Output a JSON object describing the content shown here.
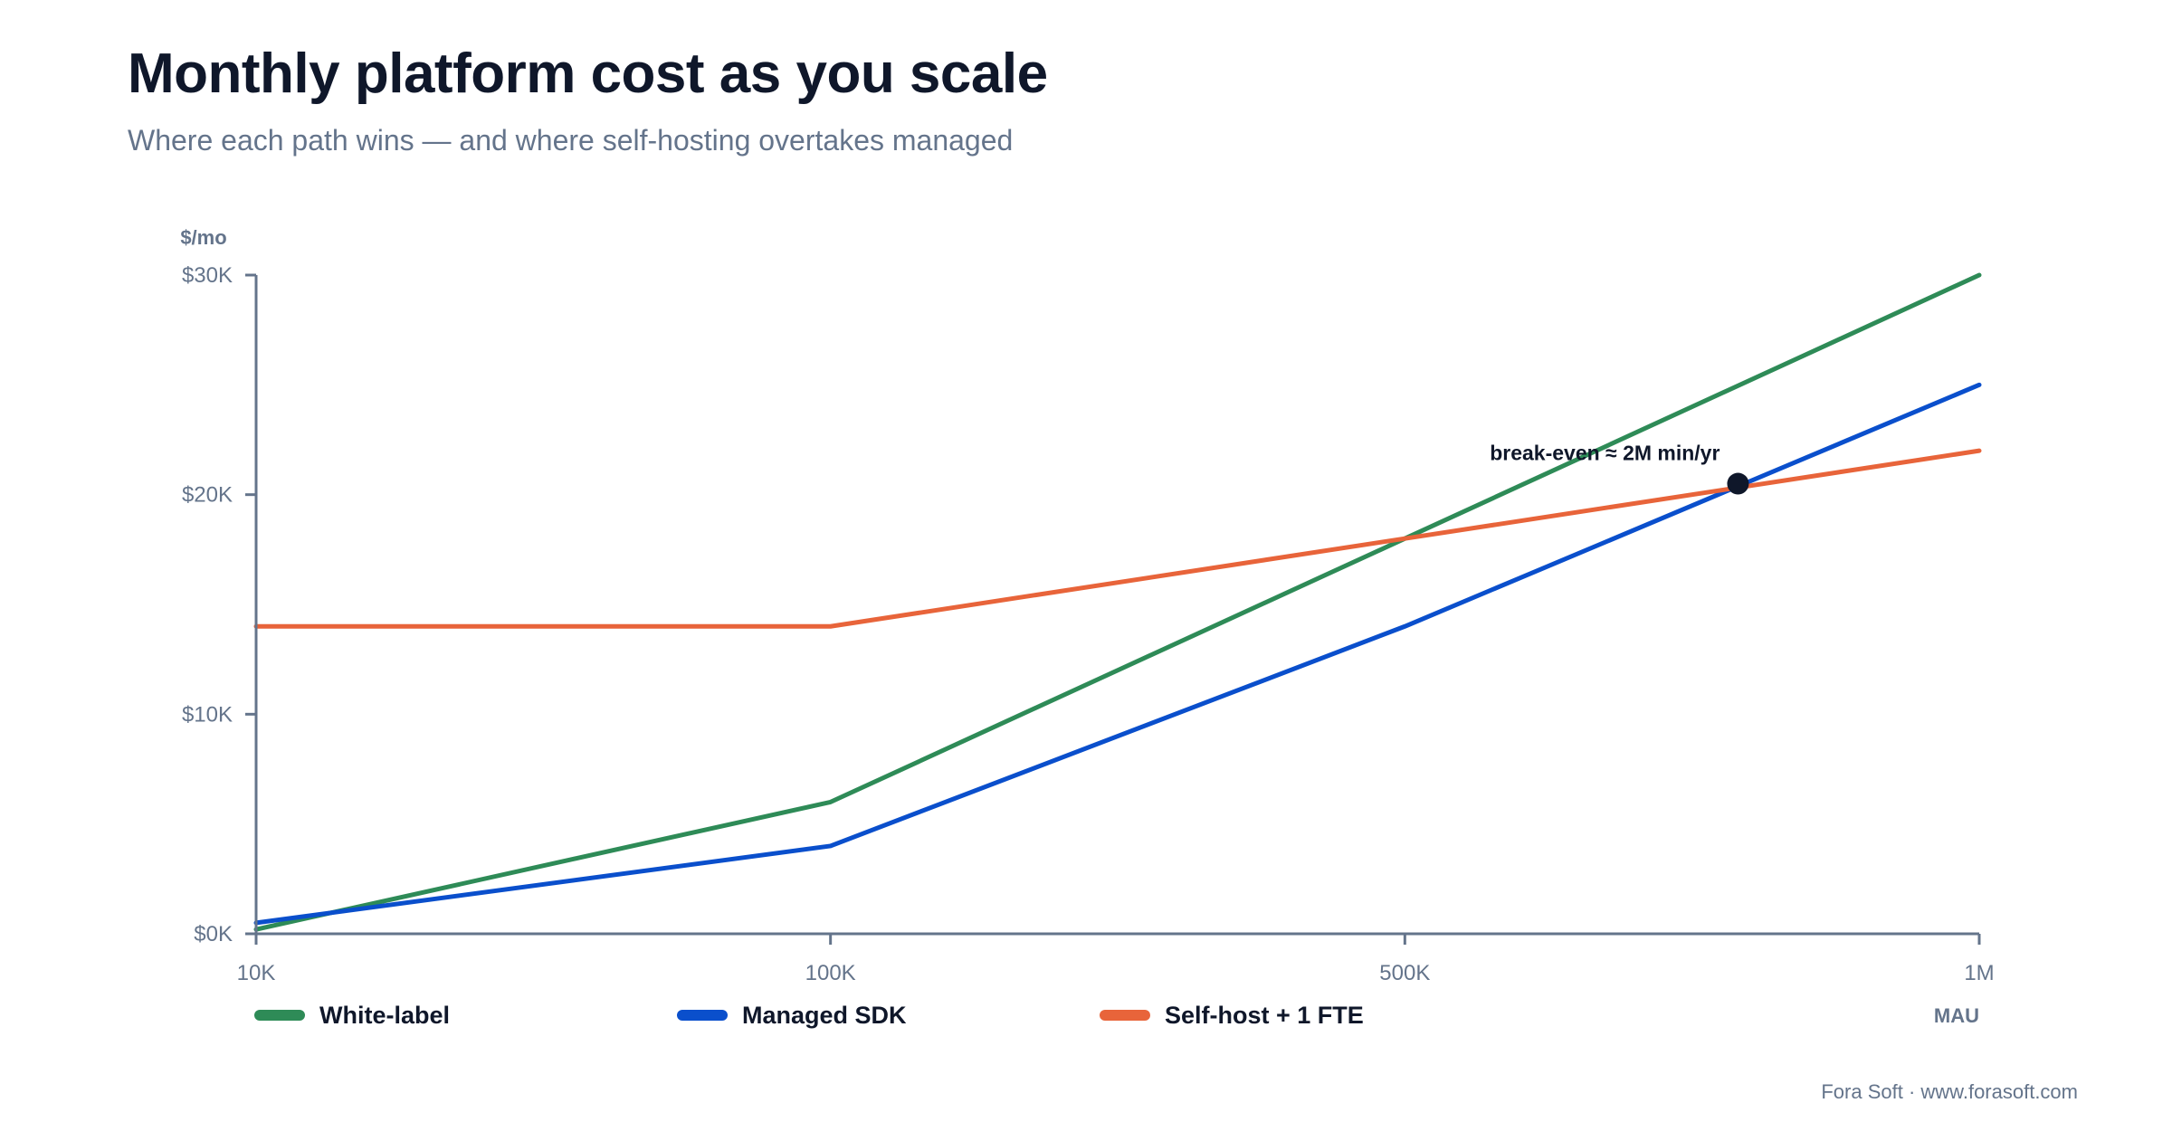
{
  "header": {
    "title": "Monthly platform cost as you scale",
    "subtitle": "Where each path wins — and where self-hosting overtakes managed"
  },
  "footer": {
    "credit": "Fora Soft · www.forasoft.com"
  },
  "chart_data": {
    "type": "line",
    "ylabel": "$/mo",
    "xlabel": "MAU",
    "categories": [
      "10K",
      "100K",
      "500K",
      "1M"
    ],
    "y_tick_labels": [
      "$0K",
      "$10K",
      "$20K",
      "$30K"
    ],
    "y_ticks": [
      0,
      10000,
      20000,
      30000
    ],
    "ylim": [
      0,
      30000
    ],
    "grid": false,
    "legend": "bottom-left",
    "series": [
      {
        "name": "White-label",
        "color": "#2e8b57",
        "values": [
          200,
          6000,
          18000,
          30000
        ]
      },
      {
        "name": "Managed SDK",
        "color": "#0a4fcc",
        "values": [
          500,
          4000,
          14000,
          25000
        ]
      },
      {
        "name": "Self-host + 1 FTE",
        "color": "#e8643a",
        "values": [
          14000,
          14000,
          18000,
          22000
        ]
      }
    ],
    "annotations": [
      {
        "text": "break-even ≈ 2M min/yr",
        "x_index": 2.58,
        "y": 20500
      }
    ]
  }
}
